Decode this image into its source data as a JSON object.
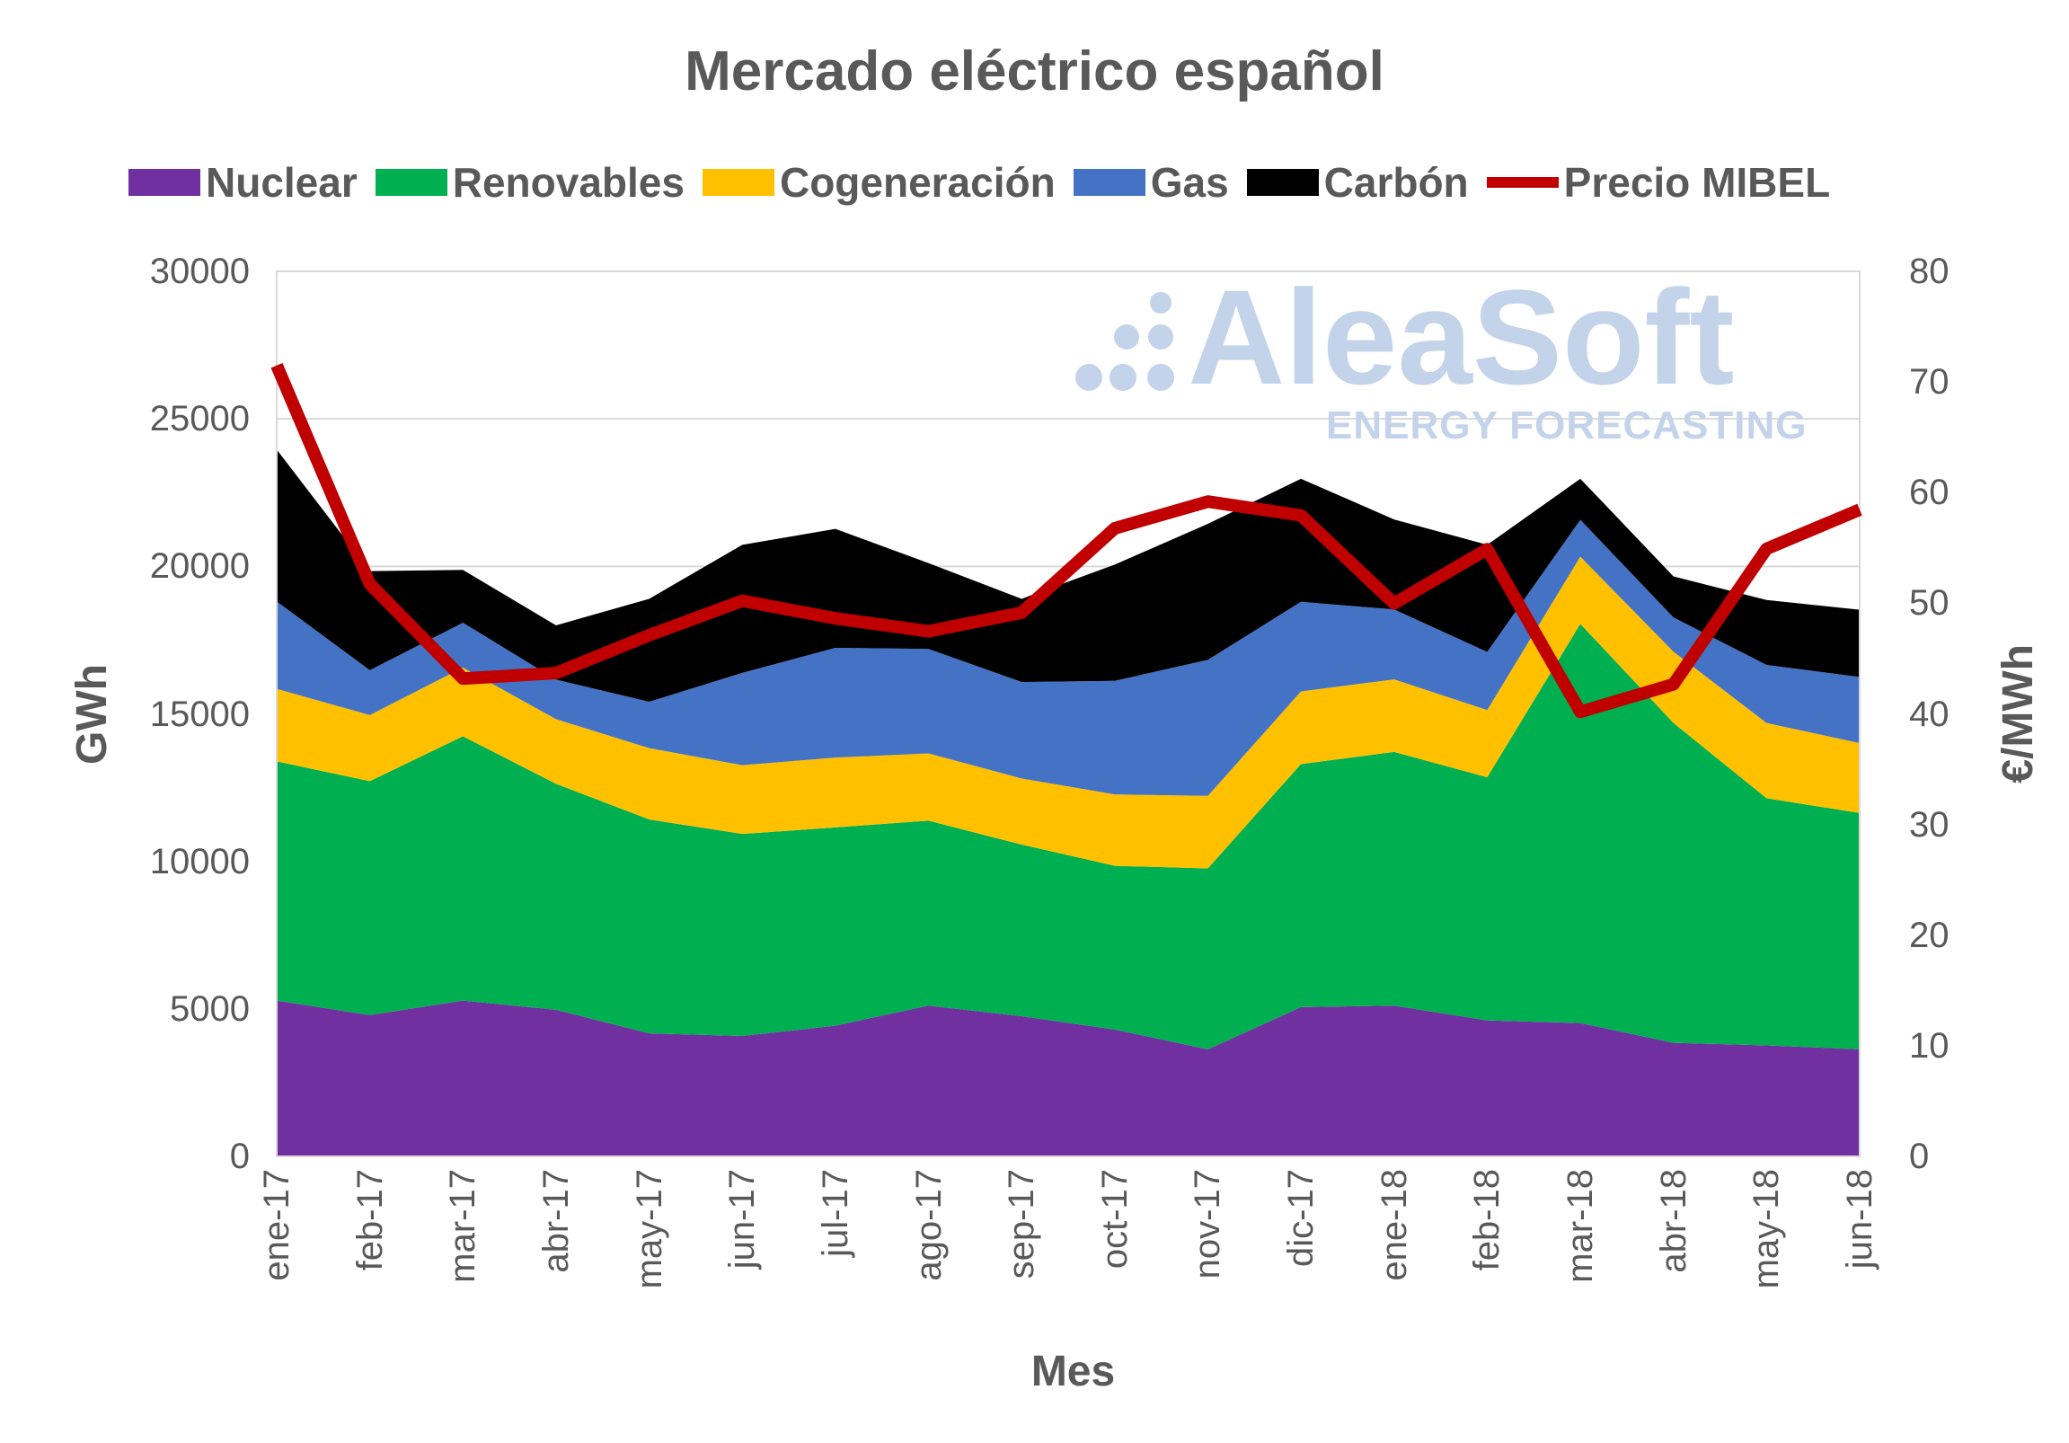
{
  "chart_data": {
    "type": "area",
    "title": "Mercado eléctrico español",
    "xlabel": "Mes",
    "ylabel": "GWh",
    "y2label": "€/MWh",
    "ylim": [
      0,
      30000
    ],
    "y2lim": [
      0,
      80
    ],
    "yticks": [
      0,
      5000,
      10000,
      15000,
      20000,
      25000,
      30000
    ],
    "y2ticks": [
      0,
      10,
      20,
      30,
      40,
      50,
      60,
      70,
      80
    ],
    "grid": true,
    "legend_position": "top",
    "watermark": {
      "brand": "AleaSoft",
      "tagline": "ENERGY FORECASTING"
    },
    "categories": [
      "ene-17",
      "feb-17",
      "mar-17",
      "abr-17",
      "may-17",
      "jun-17",
      "jul-17",
      "ago-17",
      "sep-17",
      "oct-17",
      "nov-17",
      "dic-17",
      "ene-18",
      "feb-18",
      "mar-18",
      "abr-18",
      "may-18",
      "jun-18"
    ],
    "series": [
      {
        "name": "Nuclear",
        "type": "stacked-area",
        "axis": "left",
        "color": "#7030a0",
        "values": [
          5280,
          4790,
          5280,
          4970,
          4170,
          4080,
          4430,
          5110,
          4750,
          4300,
          3630,
          5060,
          5110,
          4610,
          4520,
          3850,
          3760,
          3630
        ]
      },
      {
        "name": "Renovables",
        "type": "stacked-area",
        "axis": "left",
        "color": "#00b050",
        "values": [
          8110,
          7930,
          8960,
          7660,
          7250,
          6850,
          6720,
          6270,
          5820,
          5550,
          6130,
          8240,
          8600,
          8240,
          13530,
          10840,
          8380,
          8010
        ]
      },
      {
        "name": "Cogeneración",
        "type": "stacked-area",
        "axis": "left",
        "color": "#ffc000",
        "values": [
          2460,
          2240,
          2330,
          2190,
          2420,
          2330,
          2370,
          2280,
          2240,
          2420,
          2460,
          2460,
          2460,
          2280,
          2280,
          2420,
          2550,
          2370
        ]
      },
      {
        "name": "Gas",
        "type": "stacked-area",
        "axis": "left",
        "color": "#4472c4",
        "values": [
          2960,
          1520,
          1520,
          1340,
          1570,
          3130,
          3720,
          3540,
          3270,
          3850,
          4610,
          3040,
          2370,
          1970,
          1250,
          1160,
          1970,
          2240
        ]
      },
      {
        "name": "Carbón",
        "type": "stacked-area",
        "axis": "left",
        "color": "#000000",
        "values": [
          5150,
          3360,
          1790,
          1840,
          3490,
          4340,
          4030,
          2910,
          2820,
          3940,
          4610,
          4170,
          3050,
          3630,
          1390,
          1390,
          2200,
          2280
        ]
      },
      {
        "name": "Precio MIBEL",
        "type": "line",
        "axis": "right",
        "color": "#c00000",
        "values": [
          71.49,
          51.74,
          43.19,
          43.69,
          47.11,
          50.22,
          48.63,
          47.46,
          49.15,
          56.77,
          59.19,
          57.94,
          49.98,
          54.88,
          40.18,
          42.67,
          54.92,
          58.46
        ]
      }
    ]
  }
}
